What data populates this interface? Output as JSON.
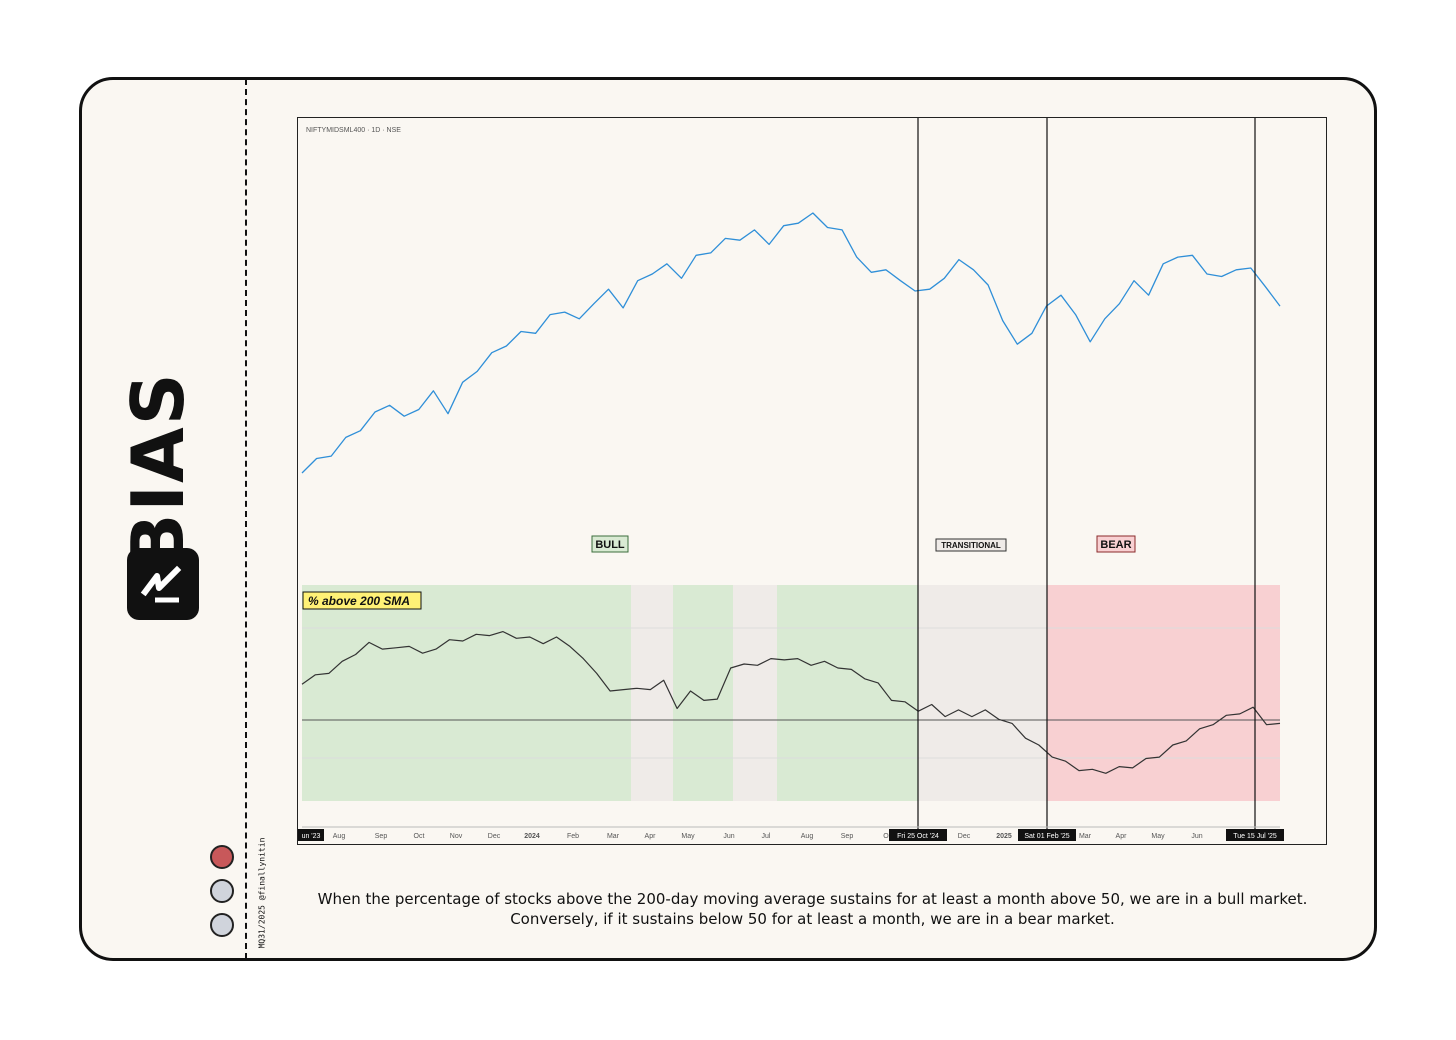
{
  "brand": {
    "name": "BIAS",
    "handle": "MQ31/2025 @finallynitin"
  },
  "status_dots": [
    {
      "color": "#c8585a"
    },
    {
      "color": "#d0d4dc"
    },
    {
      "color": "#d0d4dc"
    }
  ],
  "caption": "When the percentage of stocks above the 200-day moving average sustains for at least a month above 50, we are in a bull market. Conversely, if it sustains below 50 for at least a month, we are in a bear market.",
  "chart_data": {
    "type": "line",
    "symbol_label": "NIFTYMIDSML400 · 1D · NSE",
    "indicator_label": "% above 200 SMA",
    "x_ticks": [
      "un '23",
      "Aug",
      "Sep",
      "Oct",
      "Nov",
      "Dec",
      "2024",
      "Feb",
      "Mar",
      "Apr",
      "May",
      "Jun",
      "Jul",
      "Aug",
      "Sep",
      "O",
      "Dec",
      "2025",
      "Mar",
      "Apr",
      "May",
      "Jun"
    ],
    "markers": [
      {
        "date": "Fri 25 Oct '24"
      },
      {
        "date": "Sat 01 Feb '25"
      },
      {
        "date": "Tue 15 Jul '25"
      }
    ],
    "regimes": [
      {
        "label": "BULL",
        "color": "#d9ead3",
        "border": "#3c6e3c"
      },
      {
        "label": "TRANSITIONAL",
        "color": "#efebe8",
        "border": "#333333"
      },
      {
        "label": "BEAR",
        "color": "#f8d0d2",
        "border": "#8a2a2a"
      }
    ],
    "shading": [
      {
        "start": "Jul '23",
        "end": "Mar '24",
        "state": "bull"
      },
      {
        "start": "Mar '24",
        "end": "May '24",
        "state": "neutral"
      },
      {
        "start": "May '24",
        "end": "Jun '24",
        "state": "bull"
      },
      {
        "start": "Jun '24",
        "end": "Jul '24",
        "state": "neutral"
      },
      {
        "start": "Jul '24",
        "end": "Oct '24",
        "state": "bull"
      },
      {
        "start": "Oct '24",
        "end": "Feb '25",
        "state": "neutral"
      },
      {
        "start": "Feb '25",
        "end": "Jul '25",
        "state": "bear"
      }
    ],
    "threshold": 50,
    "series": [
      {
        "color": "#2f8fd8",
        "values": [
          40,
          42,
          44,
          47,
          50,
          53,
          56,
          52,
          55,
          58,
          54,
          60,
          64,
          67,
          70,
          72,
          73,
          76,
          78,
          75,
          80,
          82,
          79,
          84,
          87,
          88,
          86,
          90,
          92,
          94,
          95,
          96,
          94,
          97,
          99,
          100,
          98,
          96,
          91,
          86,
          88,
          84,
          83,
          82,
          86,
          89,
          88,
          83,
          76,
          69,
          73,
          78,
          82,
          76,
          71,
          75,
          80,
          84,
          82,
          88,
          91,
          90,
          87,
          85,
          88,
          87,
          84,
          78
        ]
      },
      {
        "color": "#333333",
        "values": [
          64,
          66,
          68,
          71,
          75,
          78,
          77,
          76,
          78,
          74,
          77,
          79,
          80,
          81,
          82,
          82,
          81,
          80,
          79,
          80,
          78,
          72,
          68,
          60,
          62,
          61,
          62,
          64,
          55,
          60,
          58,
          57,
          70,
          70,
          71,
          72,
          73,
          72,
          71,
          71,
          70,
          68,
          66,
          63,
          58,
          56,
          54,
          55,
          52,
          53,
          52,
          53,
          51,
          48,
          44,
          40,
          37,
          34,
          32,
          31,
          31,
          32,
          33,
          35,
          37,
          40,
          43,
          46,
          49,
          51,
          53,
          54,
          49,
          48
        ]
      }
    ]
  }
}
